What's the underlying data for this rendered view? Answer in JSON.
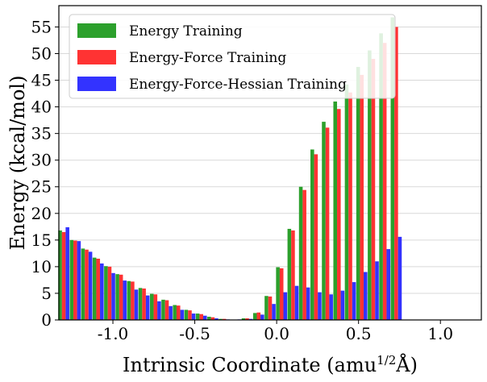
{
  "chart_data": {
    "type": "bar",
    "title": "",
    "xlabel": "Intrinsic Coordinate (amu",
    "xlabel_sup": "1/2",
    "xlabel_tail": "Å)",
    "ylabel": "Energy (kcal/mol)",
    "xlim": [
      -1.33,
      1.25
    ],
    "ylim": [
      0,
      59
    ],
    "grid": "horizontal",
    "legend_position": "upper-left",
    "xticks": [
      {
        "value": -1.0,
        "label": "-1.0"
      },
      {
        "value": -0.5,
        "label": "-0.5"
      },
      {
        "value": 0.0,
        "label": "0.0"
      },
      {
        "value": 0.5,
        "label": "0.5"
      },
      {
        "value": 1.0,
        "label": "1.0"
      }
    ],
    "yticks": [
      {
        "value": 0,
        "label": "0"
      },
      {
        "value": 5,
        "label": "5"
      },
      {
        "value": 10,
        "label": "10"
      },
      {
        "value": 15,
        "label": "15"
      },
      {
        "value": 20,
        "label": "20"
      },
      {
        "value": 25,
        "label": "25"
      },
      {
        "value": 30,
        "label": "30"
      },
      {
        "value": 35,
        "label": "35"
      },
      {
        "value": 40,
        "label": "40"
      },
      {
        "value": 45,
        "label": "45"
      },
      {
        "value": 50,
        "label": "50"
      },
      {
        "value": 55,
        "label": "55"
      }
    ],
    "bar_group_width": 0.0675,
    "x": [
      -1.3,
      -1.23,
      -1.16,
      -1.09,
      -1.02,
      -0.95,
      -0.88,
      -0.81,
      -0.74,
      -0.67,
      -0.6,
      -0.53,
      -0.46,
      -0.39,
      -0.32,
      -0.25,
      -0.18,
      -0.11,
      -0.04,
      0.03,
      0.1,
      0.17,
      0.24,
      0.31,
      0.38,
      0.45,
      0.52,
      0.59,
      0.66,
      0.73,
      0.8,
      0.87,
      0.94,
      1.01,
      1.08,
      1.15,
      1.22
    ],
    "series": [
      {
        "name": "Energy Training",
        "color": "#2ca02c",
        "values": [
          16.8,
          15.0,
          13.4,
          11.7,
          10.1,
          8.6,
          7.3,
          6.0,
          4.9,
          3.8,
          2.8,
          1.9,
          1.2,
          0.6,
          0.2,
          0.05,
          0.3,
          1.3,
          4.5,
          9.9,
          17.1,
          25.0,
          32.0,
          37.2,
          41.0,
          44.2,
          47.5,
          50.6,
          53.8,
          56.8,
          0,
          0,
          0,
          0,
          0,
          0,
          0
        ]
      },
      {
        "name": "Energy-Force Training",
        "color": "#ff3333",
        "values": [
          16.5,
          14.9,
          13.2,
          11.5,
          10.0,
          8.5,
          7.2,
          5.9,
          4.8,
          3.7,
          2.7,
          1.8,
          1.1,
          0.5,
          0.2,
          0.05,
          0.3,
          1.4,
          4.4,
          9.7,
          16.8,
          24.4,
          31.1,
          36.1,
          39.6,
          42.7,
          46.0,
          49.0,
          52.0,
          55.0,
          0,
          0,
          0,
          0,
          0,
          0,
          0
        ]
      },
      {
        "name": "Energy-Force-Hessian Training",
        "color": "#3333ff",
        "values": [
          17.4,
          14.8,
          12.8,
          10.6,
          8.8,
          7.4,
          5.7,
          4.6,
          3.5,
          2.6,
          1.9,
          1.2,
          0.8,
          0.3,
          0.1,
          0.1,
          0.2,
          1.0,
          3.0,
          5.2,
          6.4,
          6.1,
          5.2,
          4.8,
          5.5,
          7.1,
          9.0,
          11.0,
          13.3,
          15.6,
          0,
          0,
          0,
          0,
          0,
          0,
          0
        ]
      }
    ]
  }
}
